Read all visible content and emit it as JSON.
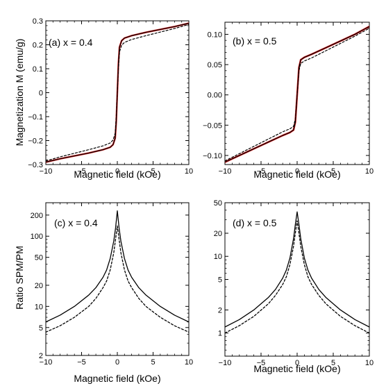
{
  "chart_data": [
    {
      "type": "line",
      "panel_label": "(a) x = 0.4",
      "xlabel": "Magnetic field (kOe)",
      "ylabel": "Magnetization M (emu/g)",
      "xlim": [
        -10,
        10
      ],
      "ylim": [
        -0.3,
        0.3
      ],
      "xticks": [
        -10,
        -5,
        0,
        5,
        10
      ],
      "yticks": [
        -0.3,
        -0.2,
        -0.1,
        0.0,
        0.1,
        0.2,
        0.3
      ],
      "ytick_labels": [
        "−0.3",
        "−0.2",
        "−0.1",
        "0",
        "0.1",
        "0.2",
        "0.3"
      ],
      "yscale": "linear",
      "series": [
        {
          "style": "solid",
          "color": "#e02020",
          "width": 2.4,
          "x": [
            -10,
            -8,
            -6,
            -4,
            -2,
            -1,
            -0.6,
            -0.3,
            -0.15,
            0,
            0.15,
            0.3,
            0.6,
            1,
            2,
            4,
            6,
            8,
            10
          ],
          "y": [
            -0.29,
            -0.276,
            -0.264,
            -0.252,
            -0.238,
            -0.228,
            -0.217,
            -0.19,
            -0.12,
            0.0,
            0.12,
            0.19,
            0.217,
            0.228,
            0.238,
            0.252,
            0.264,
            0.276,
            0.29
          ]
        },
        {
          "style": "solid",
          "color": "#000000",
          "width": 1.2,
          "x": [
            -10,
            -8,
            -6,
            -4,
            -2,
            -1,
            -0.6,
            -0.3,
            -0.15,
            0,
            0.15,
            0.3,
            0.6,
            1,
            2,
            4,
            6,
            8,
            10
          ],
          "y": [
            -0.29,
            -0.276,
            -0.264,
            -0.252,
            -0.238,
            -0.228,
            -0.217,
            -0.19,
            -0.12,
            0.0,
            0.12,
            0.19,
            0.217,
            0.228,
            0.238,
            0.252,
            0.264,
            0.276,
            0.29
          ]
        },
        {
          "style": "dashed",
          "color": "#000000",
          "width": 1.2,
          "x": [
            -10,
            -8,
            -6,
            -4,
            -2,
            -1,
            -0.6,
            -0.3,
            -0.15,
            0,
            0.15,
            0.3,
            0.6,
            1,
            2,
            4,
            6,
            8,
            10
          ],
          "y": [
            -0.285,
            -0.268,
            -0.253,
            -0.238,
            -0.222,
            -0.21,
            -0.198,
            -0.17,
            -0.1,
            0.0,
            0.1,
            0.17,
            0.198,
            0.21,
            0.222,
            0.238,
            0.253,
            0.268,
            0.285
          ]
        }
      ]
    },
    {
      "type": "line",
      "panel_label": "(b) x = 0.5",
      "xlabel": "Magnetic field (kOe)",
      "ylabel": "",
      "xlim": [
        -10,
        10
      ],
      "ylim": [
        -0.115,
        0.12
      ],
      "xticks": [
        -10,
        -5,
        0,
        5,
        10
      ],
      "yticks": [
        -0.1,
        -0.05,
        0.0,
        0.05,
        0.1
      ],
      "ytick_labels": [
        "−0.10",
        "−0.05",
        "0.00",
        "0.05",
        "0.10"
      ],
      "yscale": "linear",
      "series": [
        {
          "style": "solid",
          "color": "#e02020",
          "width": 2.6,
          "x": [
            -10,
            -8,
            -6,
            -4,
            -2,
            -1,
            -0.5,
            -0.25,
            0,
            0.25,
            0.5,
            1,
            2,
            4,
            6,
            8,
            10
          ],
          "y": [
            -0.111,
            -0.1,
            -0.089,
            -0.078,
            -0.067,
            -0.062,
            -0.058,
            -0.045,
            0.0,
            0.045,
            0.058,
            0.062,
            0.067,
            0.078,
            0.089,
            0.1,
            0.113
          ]
        },
        {
          "style": "solid",
          "color": "#000000",
          "width": 1.2,
          "x": [
            -10,
            -8,
            -6,
            -4,
            -2,
            -1,
            -0.5,
            -0.25,
            0,
            0.25,
            0.5,
            1,
            2,
            4,
            6,
            8,
            10
          ],
          "y": [
            -0.111,
            -0.1,
            -0.089,
            -0.078,
            -0.067,
            -0.062,
            -0.058,
            -0.045,
            0.0,
            0.045,
            0.058,
            0.062,
            0.067,
            0.078,
            0.089,
            0.1,
            0.113
          ]
        },
        {
          "style": "dashed",
          "color": "#000000",
          "width": 1.2,
          "x": [
            -10,
            -8,
            -6,
            -4,
            -2,
            -1,
            -0.5,
            -0.25,
            0,
            0.25,
            0.5,
            1,
            2,
            4,
            6,
            8,
            10
          ],
          "y": [
            -0.109,
            -0.097,
            -0.085,
            -0.073,
            -0.061,
            -0.056,
            -0.052,
            -0.04,
            0.0,
            0.04,
            0.052,
            0.056,
            0.061,
            0.073,
            0.085,
            0.097,
            0.11
          ]
        }
      ]
    },
    {
      "type": "line",
      "panel_label": "(c) x = 0.4",
      "xlabel": "Magnetic field (kOe)",
      "ylabel": "Ratio SPM/PM",
      "xlim": [
        -10,
        10
      ],
      "ylim": [
        2,
        300
      ],
      "xticks": [
        -10,
        -5,
        0,
        5,
        10
      ],
      "yticks": [
        2,
        5,
        10,
        20,
        50,
        100,
        200
      ],
      "ytick_labels": [
        "2",
        "5",
        "10",
        "20",
        "50",
        "100",
        "200"
      ],
      "yscale": "log",
      "series": [
        {
          "style": "solid",
          "color": "#000000",
          "width": 1.3,
          "x": [
            -10,
            -8,
            -6,
            -4,
            -3,
            -2,
            -1.5,
            -1,
            -0.5,
            -0.25,
            0,
            0.25,
            0.5,
            1,
            1.5,
            2,
            3,
            4,
            6,
            8,
            10
          ],
          "y": [
            6,
            7.5,
            10,
            14.5,
            18.5,
            26,
            33,
            48,
            85,
            130,
            230,
            130,
            85,
            48,
            33,
            26,
            18.5,
            14.5,
            10,
            7.5,
            6
          ]
        },
        {
          "style": "dashed",
          "color": "#000000",
          "width": 1.3,
          "x": [
            -10,
            -8,
            -6,
            -4,
            -3,
            -2,
            -1.5,
            -1,
            -0.5,
            -0.25,
            0,
            0.25,
            0.5,
            1,
            1.5,
            2,
            3,
            4,
            6,
            8,
            10
          ],
          "y": [
            4.3,
            5.3,
            7,
            10,
            13,
            18.5,
            23,
            33,
            58,
            90,
            140,
            90,
            58,
            33,
            23,
            18.5,
            13,
            10,
            7,
            5.3,
            4.3
          ]
        }
      ]
    },
    {
      "type": "line",
      "panel_label": "(d) x = 0.5",
      "xlabel": "Magnetic field (kOe)",
      "ylabel": "",
      "xlim": [
        -10,
        10
      ],
      "ylim": [
        0.5,
        50
      ],
      "xticks": [
        -10,
        -5,
        0,
        5,
        10
      ],
      "yticks": [
        1,
        2,
        5,
        10,
        20,
        50
      ],
      "ytick_labels": [
        "1",
        "2",
        "5",
        "10",
        "20",
        "50"
      ],
      "yscale": "log",
      "series": [
        {
          "style": "solid",
          "color": "#000000",
          "width": 1.3,
          "x": [
            -10,
            -8,
            -6,
            -4,
            -3,
            -2,
            -1.5,
            -1,
            -0.5,
            -0.25,
            0,
            0.25,
            0.5,
            1,
            1.5,
            2,
            3,
            4,
            6,
            8,
            10
          ],
          "y": [
            1.2,
            1.5,
            2.0,
            2.9,
            3.7,
            5.2,
            6.6,
            9.5,
            17,
            26,
            38,
            26,
            17,
            9.5,
            6.6,
            5.2,
            3.7,
            2.9,
            2.0,
            1.5,
            1.2
          ]
        },
        {
          "style": "dashed",
          "color": "#000000",
          "width": 1.3,
          "x": [
            -10,
            -8,
            -6,
            -4,
            -3,
            -2,
            -1.5,
            -1,
            -0.5,
            -0.25,
            0,
            0.25,
            0.5,
            1,
            1.5,
            2,
            3,
            4,
            6,
            8,
            10
          ],
          "y": [
            1.0,
            1.25,
            1.65,
            2.4,
            3.1,
            4.3,
            5.4,
            7.8,
            13.5,
            20,
            29,
            20,
            13.5,
            7.8,
            5.4,
            4.3,
            3.1,
            2.4,
            1.65,
            1.25,
            1.0
          ]
        }
      ]
    }
  ]
}
